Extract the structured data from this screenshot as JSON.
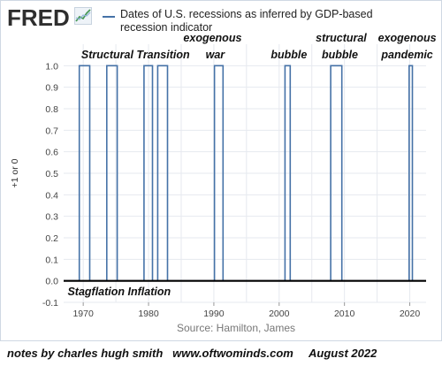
{
  "header": {
    "logo_text": "FRED",
    "logo_icon": "line-chart-icon",
    "legend_label": "Dates of U.S. recessions as inferred by GDP-based recession indicator"
  },
  "colors": {
    "series": "#4572a7",
    "grid": "#e6e9ef",
    "annotation": "#111111"
  },
  "footer": {
    "note": "notes by charles hugh smith   www.oftwominds.com",
    "date": "August 2022"
  },
  "chart_data": {
    "type": "line",
    "title": "",
    "xlabel": "",
    "ylabel": "+1 or 0",
    "source": "Source: Hamilton, James",
    "xlim": [
      1967.0,
      2022.5
    ],
    "ylim": [
      -0.1,
      1.1
    ],
    "grid": true,
    "xticks": [
      1970,
      1980,
      1990,
      2000,
      2010,
      2020
    ],
    "yticks": [
      "-0.1",
      "0.0",
      "0.1",
      "0.2",
      "0.3",
      "0.4",
      "0.5",
      "0.6",
      "0.7",
      "0.8",
      "0.9",
      "1.0"
    ],
    "series": [
      {
        "name": "Dates of U.S. recessions as inferred by GDP-based recession indicator",
        "recessions": [
          [
            1969.4,
            1971.0
          ],
          [
            1973.6,
            1975.2
          ],
          [
            1979.3,
            1980.6
          ],
          [
            1981.4,
            1982.9
          ],
          [
            1990.1,
            1991.4
          ],
          [
            2000.9,
            2001.7
          ],
          [
            2007.9,
            2009.6
          ],
          [
            2019.9,
            2020.4
          ]
        ],
        "values_note": "series equals 1 inside recession intervals, 0 otherwise"
      }
    ],
    "annotations": {
      "top": [
        {
          "text": "Structural Transition",
          "x": 1978.0,
          "line": 1
        },
        {
          "text": "exogenous",
          "x": 1989.8,
          "line": 0
        },
        {
          "text": "war",
          "x": 1990.2,
          "line": 1
        },
        {
          "text": "bubble",
          "x": 2001.5,
          "line": 1
        },
        {
          "text": "structural",
          "x": 2009.5,
          "line": 0
        },
        {
          "text": "bubble",
          "x": 2009.3,
          "line": 1
        },
        {
          "text": "exogenous",
          "x": 2019.6,
          "line": 0
        },
        {
          "text": "pandemic",
          "x": 2019.6,
          "line": 1
        }
      ],
      "bottom": [
        {
          "text": "Stagflation Inflation",
          "x": 1975.5
        }
      ]
    }
  }
}
